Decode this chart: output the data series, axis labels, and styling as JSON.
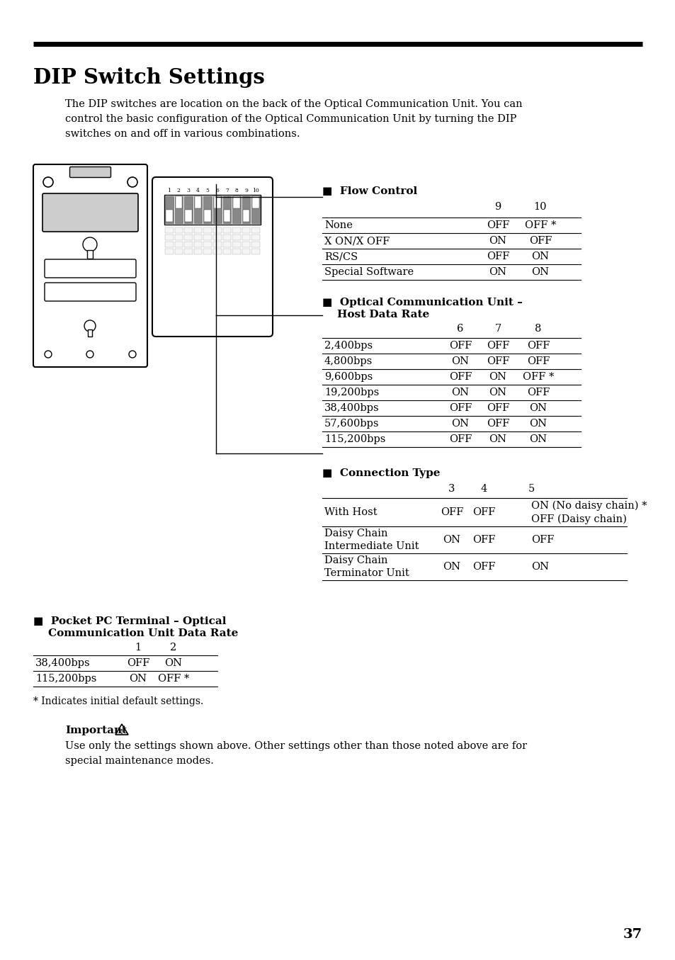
{
  "title": "DIP Switch Settings",
  "intro_text": "The DIP switches are location on the back of the Optical Communication Unit. You can\ncontrol the basic configuration of the Optical Communication Unit by turning the DIP\nswitches on and off in various combinations.",
  "flow_control_label": "■  Flow Control",
  "flow_control_cols": [
    "9",
    "10"
  ],
  "flow_control_rows": [
    [
      "None",
      "OFF",
      "OFF *"
    ],
    [
      "X ON/X OFF",
      "ON",
      "OFF"
    ],
    [
      "RS/CS",
      "OFF",
      "ON"
    ],
    [
      "Special Software",
      "ON",
      "ON"
    ]
  ],
  "optical_label_line1": "■  Optical Communication Unit –",
  "optical_label_line2": "    Host Data Rate",
  "optical_cols": [
    "6",
    "7",
    "8"
  ],
  "optical_rows": [
    [
      "2,400bps",
      "OFF",
      "OFF",
      "OFF"
    ],
    [
      "4,800bps",
      "ON",
      "OFF",
      "OFF"
    ],
    [
      "9,600bps",
      "OFF",
      "ON",
      "OFF *"
    ],
    [
      "19,200bps",
      "ON",
      "ON",
      "OFF"
    ],
    [
      "38,400bps",
      "OFF",
      "OFF",
      "ON"
    ],
    [
      "57,600bps",
      "ON",
      "OFF",
      "ON"
    ],
    [
      "115,200bps",
      "OFF",
      "ON",
      "ON"
    ]
  ],
  "connection_label": "■  Connection Type",
  "connection_cols": [
    "3",
    "4",
    "5"
  ],
  "connection_rows": [
    [
      "With Host",
      "OFF",
      "OFF",
      "ON (No daisy chain) *\nOFF (Daisy chain)"
    ],
    [
      "Daisy Chain\nIntermediate Unit",
      "ON",
      "OFF",
      "OFF"
    ],
    [
      "Daisy Chain\nTerminator Unit",
      "ON",
      "OFF",
      "ON"
    ]
  ],
  "pocket_label_line1": "■  Pocket PC Terminal – Optical",
  "pocket_label_line2": "    Communication Unit Data Rate",
  "pocket_cols": [
    "1",
    "2"
  ],
  "pocket_rows": [
    [
      "38,400bps",
      "OFF",
      "ON"
    ],
    [
      "115,200bps",
      "ON",
      "OFF *"
    ]
  ],
  "footnote": "* Indicates initial default settings.",
  "important_label": "Important",
  "important_text": "Use only the settings shown above. Other settings other than those noted above are for\nspecial maintenance modes.",
  "page_number": "37",
  "bg_color": "#ffffff"
}
